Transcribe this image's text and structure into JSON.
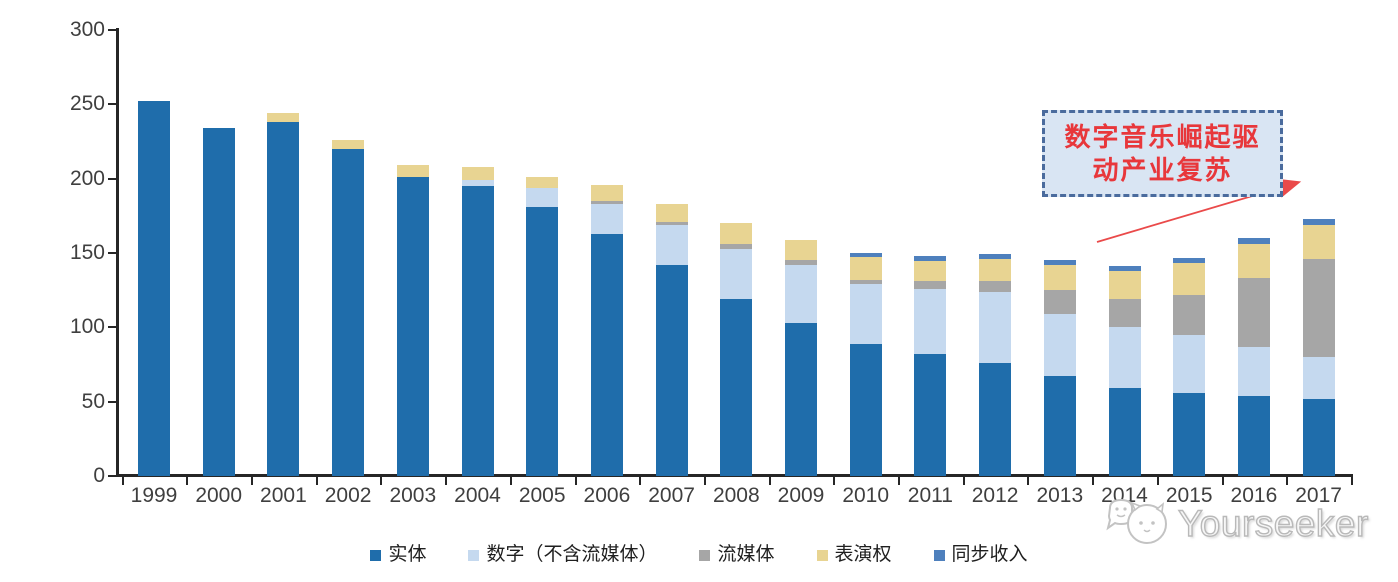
{
  "chart_data": {
    "type": "bar",
    "stacked": true,
    "title": "",
    "xlabel": "",
    "ylabel": "",
    "ylim": [
      0,
      300
    ],
    "yticks": [
      0,
      50,
      100,
      150,
      200,
      250,
      300
    ],
    "grid": false,
    "legend_position": "bottom",
    "categories": [
      "1999",
      "2000",
      "2001",
      "2002",
      "2003",
      "2004",
      "2005",
      "2006",
      "2007",
      "2008",
      "2009",
      "2010",
      "2011",
      "2012",
      "2013",
      "2014",
      "2015",
      "2016",
      "2017"
    ],
    "series": [
      {
        "name": "实体",
        "color": "#1f6dab",
        "values": [
          252,
          234,
          238,
          220,
          201,
          195,
          181,
          163,
          142,
          119,
          103,
          89,
          82,
          76,
          67,
          59,
          56,
          54,
          52
        ]
      },
      {
        "name": "数字（不含流媒体）",
        "color": "#c5d9ef",
        "values": [
          0,
          0,
          0,
          0,
          0,
          4,
          13,
          20,
          27,
          34,
          39,
          40,
          44,
          48,
          42,
          41,
          39,
          33,
          28
        ]
      },
      {
        "name": "流媒体",
        "color": "#a6a6a6",
        "values": [
          0,
          0,
          0,
          0,
          0,
          0,
          0,
          2,
          2,
          3,
          3,
          3,
          5,
          7,
          16,
          19,
          27,
          46,
          66
        ]
      },
      {
        "name": "表演权",
        "color": "#e8d492",
        "values": [
          0,
          0,
          6,
          6,
          8,
          9,
          7,
          11,
          12,
          14,
          14,
          15,
          14,
          15,
          17,
          19,
          21,
          23,
          23
        ]
      },
      {
        "name": "同步收入",
        "color": "#4e80bd",
        "values": [
          0,
          0,
          0,
          0,
          0,
          0,
          0,
          0,
          0,
          0,
          0,
          3,
          3,
          3,
          3,
          3,
          4,
          4,
          4
        ]
      }
    ]
  },
  "annotation": {
    "line1": "数字音乐崛起驱",
    "line2": "动产业复苏",
    "text_color": "#e8373b",
    "border_color": "#4a6b9d",
    "background_color": "#d9e5f3",
    "arrow_color": "#ea4a4a"
  },
  "watermark": {
    "text": "Yourseeker",
    "logo": "cat-logo-icon",
    "color": "#b9b9b9"
  }
}
